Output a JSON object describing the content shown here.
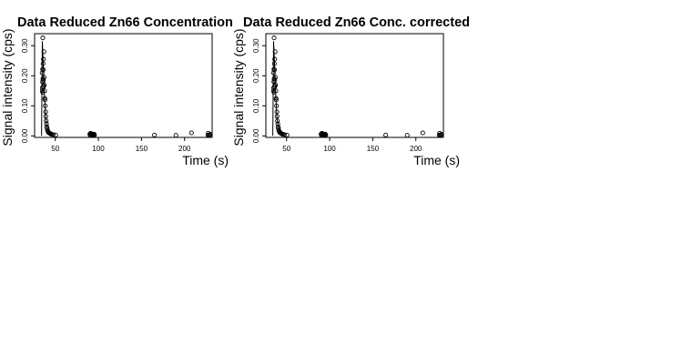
{
  "chart_data": [
    {
      "type": "scatter",
      "title": "Data Reduced Zn66 Concentration",
      "xlabel": "Time (s)",
      "ylabel": "Signal intensity (cps)",
      "xlim": [
        26,
        232
      ],
      "ylim": [
        -0.005,
        0.34
      ],
      "xticks": [
        {
          "value": 50,
          "label": "50"
        },
        {
          "value": 100,
          "label": "100"
        },
        {
          "value": 150,
          "label": "150"
        },
        {
          "value": 200,
          "label": "200"
        }
      ],
      "yticks": [
        {
          "value": 0.0,
          "label": "0.00"
        },
        {
          "value": 0.1,
          "label": "0.10"
        },
        {
          "value": 0.2,
          "label": "0.20"
        },
        {
          "value": 0.3,
          "label": "0.30"
        }
      ],
      "grid": false,
      "legend": "none",
      "line": {
        "x": [
          34,
          35,
          37.5,
          39,
          41,
          43,
          45,
          47
        ],
        "y": [
          0.0,
          0.315,
          0.13,
          0.055,
          0.022,
          0.01,
          0.004,
          0.002
        ]
      },
      "points": {
        "x": [
          35.5,
          35.8,
          36.2,
          36.0,
          35.3,
          34.8,
          35.6,
          36.4,
          35.2,
          36.0,
          35.0,
          36.6,
          34.9,
          35.4,
          36.8,
          37.0,
          37.2,
          37.6,
          37.8,
          38.0,
          38.4,
          38.8,
          39.0,
          39.4,
          39.8,
          40.2,
          40.6,
          41.0,
          41.6,
          42.0,
          42.8,
          43.4,
          44.0,
          45.0,
          46.0,
          47.5,
          50.5,
          90.0,
          90.6,
          91.0,
          91.5,
          92.0,
          92.5,
          93.0,
          93.5,
          94.0,
          94.5,
          95.0,
          95.5,
          165.0,
          190.0,
          208.0,
          227.0,
          227.6,
          228.3,
          229.0,
          230.0
        ],
        "y": [
          0.326,
          0.24,
          0.255,
          0.22,
          0.222,
          0.21,
          0.19,
          0.185,
          0.18,
          0.165,
          0.16,
          0.165,
          0.15,
          0.145,
          0.28,
          0.195,
          0.17,
          0.15,
          0.125,
          0.12,
          0.1,
          0.08,
          0.065,
          0.05,
          0.04,
          0.03,
          0.025,
          0.018,
          0.015,
          0.012,
          0.01,
          0.009,
          0.008,
          0.006,
          0.005,
          0.004,
          0.003,
          0.006,
          0.002,
          0.009,
          0.004,
          0.007,
          0.003,
          0.006,
          0.002,
          0.005,
          0.004,
          0.006,
          0.003,
          0.003,
          0.002,
          0.01,
          0.003,
          0.009,
          0.002,
          0.004,
          0.005
        ]
      }
    },
    {
      "type": "scatter",
      "title": "Data Reduced Zn66 Conc. corrected",
      "xlabel": "Time (s)",
      "ylabel": "Signal intensity (cps)",
      "xlim": [
        26,
        232
      ],
      "ylim": [
        -0.005,
        0.34
      ],
      "xticks": [
        {
          "value": 50,
          "label": "50"
        },
        {
          "value": 100,
          "label": "100"
        },
        {
          "value": 150,
          "label": "150"
        },
        {
          "value": 200,
          "label": "200"
        }
      ],
      "yticks": [
        {
          "value": 0.0,
          "label": "0.00"
        },
        {
          "value": 0.1,
          "label": "0.10"
        },
        {
          "value": 0.2,
          "label": "0.20"
        },
        {
          "value": 0.3,
          "label": "0.30"
        }
      ],
      "grid": false,
      "legend": "none",
      "line": {
        "x": [
          34,
          35,
          37.5,
          39,
          41,
          43,
          45,
          47
        ],
        "y": [
          0.0,
          0.315,
          0.13,
          0.055,
          0.022,
          0.01,
          0.004,
          0.002
        ]
      },
      "points": {
        "x": [
          35.5,
          35.8,
          36.2,
          36.0,
          35.3,
          34.8,
          35.6,
          36.4,
          35.2,
          36.0,
          35.0,
          36.6,
          34.9,
          35.4,
          36.8,
          37.0,
          37.2,
          37.6,
          37.8,
          38.0,
          38.4,
          38.8,
          39.0,
          39.4,
          39.8,
          40.2,
          40.6,
          41.0,
          41.6,
          42.0,
          42.8,
          43.4,
          44.0,
          45.0,
          46.0,
          47.5,
          50.5,
          90.0,
          90.6,
          91.0,
          91.5,
          92.0,
          92.5,
          93.0,
          93.5,
          94.0,
          94.5,
          95.0,
          95.5,
          165.0,
          190.0,
          208.0,
          227.0,
          227.6,
          228.3,
          229.0,
          230.0
        ],
        "y": [
          0.326,
          0.24,
          0.255,
          0.22,
          0.222,
          0.21,
          0.19,
          0.185,
          0.18,
          0.165,
          0.16,
          0.165,
          0.15,
          0.145,
          0.28,
          0.195,
          0.17,
          0.15,
          0.125,
          0.12,
          0.1,
          0.08,
          0.065,
          0.05,
          0.04,
          0.03,
          0.025,
          0.018,
          0.015,
          0.012,
          0.01,
          0.009,
          0.008,
          0.006,
          0.005,
          0.004,
          0.003,
          0.006,
          0.002,
          0.009,
          0.004,
          0.007,
          0.003,
          0.006,
          0.002,
          0.005,
          0.004,
          0.006,
          0.003,
          0.003,
          0.002,
          0.01,
          0.003,
          0.009,
          0.002,
          0.004,
          0.005
        ]
      }
    }
  ]
}
